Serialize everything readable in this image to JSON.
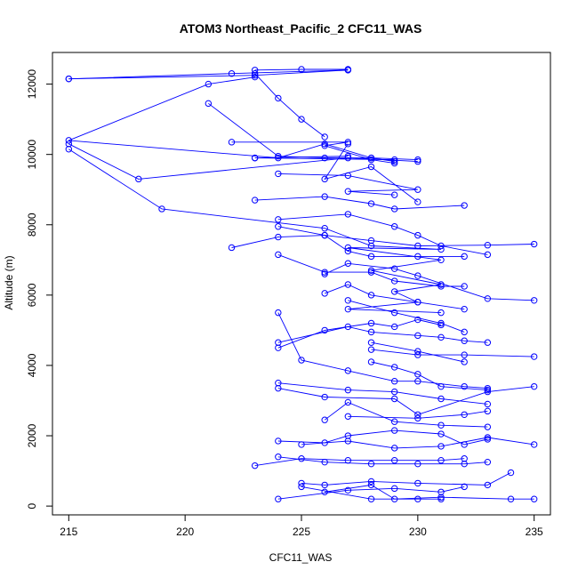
{
  "chart_data": {
    "type": "line",
    "title": "ATOM3 Northeast_Pacific_2 CFC11_WAS",
    "xlabel": "CFC11_WAS",
    "ylabel": "Altitude (m)",
    "xlim": [
      214.3,
      235.7
    ],
    "ylim": [
      -250,
      12900
    ],
    "x_ticks": [
      215,
      220,
      225,
      230,
      235
    ],
    "y_ticks": [
      0,
      2000,
      4000,
      6000,
      8000,
      10000,
      12000
    ],
    "grid": false,
    "legend": "none",
    "marker": "open-circle",
    "series_color": "#0000ff",
    "series": [
      {
        "x": [
          215,
          223,
          227
        ],
        "y": [
          12150,
          12250,
          12400
        ]
      },
      {
        "x": [
          223,
          225,
          227
        ],
        "y": [
          12400,
          12420,
          12420
        ]
      },
      {
        "x": [
          227,
          222,
          215
        ],
        "y": [
          12400,
          12300,
          12150
        ]
      },
      {
        "x": [
          223,
          221,
          215,
          224,
          226,
          228,
          229
        ],
        "y": [
          12200,
          12000,
          10400,
          9900,
          10300,
          9900,
          9800
        ]
      },
      {
        "x": [
          223,
          224,
          225,
          226
        ],
        "y": [
          12300,
          11600,
          11000,
          10500
        ]
      },
      {
        "x": [
          215,
          218,
          227,
          230
        ],
        "y": [
          10300,
          9300,
          9900,
          9800
        ]
      },
      {
        "x": [
          215,
          219,
          226,
          228,
          231,
          227,
          231,
          228,
          231,
          229,
          230,
          227,
          231
        ],
        "y": [
          10150,
          8450,
          7900,
          7400,
          7300,
          7350,
          7000,
          6700,
          6300,
          6100,
          5800,
          5600,
          5500
        ]
      },
      {
        "x": [
          221,
          224,
          226,
          228,
          230
        ],
        "y": [
          11450,
          9950,
          9900,
          9900,
          9850
        ]
      },
      {
        "x": [
          222,
          227,
          226,
          228,
          229
        ],
        "y": [
          10350,
          10350,
          10250,
          9850,
          9750
        ]
      },
      {
        "x": [
          223,
          229,
          223,
          227
        ],
        "y": [
          9900,
          9850,
          9900,
          9950
        ]
      },
      {
        "x": [
          224,
          227,
          230,
          227,
          229
        ],
        "y": [
          9450,
          9400,
          9000,
          8950,
          8850
        ]
      },
      {
        "x": [
          227,
          226,
          228,
          230
        ],
        "y": [
          10300,
          9300,
          9650,
          8650
        ]
      },
      {
        "x": [
          223,
          226,
          228,
          229,
          232
        ],
        "y": [
          8700,
          8800,
          8600,
          8450,
          8550
        ]
      },
      {
        "x": [
          224,
          227,
          229,
          230,
          231,
          233
        ],
        "y": [
          8150,
          8300,
          7950,
          7700,
          7400,
          7150
        ]
      },
      {
        "x": [
          224,
          226,
          228,
          230,
          233,
          235
        ],
        "y": [
          7950,
          7700,
          7550,
          7400,
          7420,
          7450
        ]
      },
      {
        "x": [
          222,
          224,
          226,
          227,
          228,
          230,
          232
        ],
        "y": [
          7350,
          7650,
          7700,
          7250,
          7100,
          7100,
          7100
        ]
      },
      {
        "x": [
          224,
          226,
          228,
          229,
          231,
          232
        ],
        "y": [
          7150,
          6650,
          6650,
          6400,
          6250,
          6250
        ]
      },
      {
        "x": [
          226,
          227,
          229,
          230,
          233,
          235
        ],
        "y": [
          6600,
          6900,
          6750,
          6550,
          5900,
          5850
        ]
      },
      {
        "x": [
          226,
          227,
          228,
          230,
          232
        ],
        "y": [
          6050,
          6300,
          6000,
          5800,
          5600
        ]
      },
      {
        "x": [
          224,
          225,
          227,
          229,
          230,
          232,
          233
        ],
        "y": [
          5500,
          4150,
          3850,
          3550,
          3550,
          3400,
          3350
        ]
      },
      {
        "x": [
          224,
          226,
          228,
          229,
          230,
          231
        ],
        "y": [
          4500,
          5000,
          5200,
          5100,
          5300,
          5150
        ]
      },
      {
        "x": [
          224,
          227,
          228,
          230,
          231,
          232,
          233
        ],
        "y": [
          4650,
          5100,
          4950,
          4850,
          4800,
          4700,
          4650
        ]
      },
      {
        "x": [
          228,
          230,
          232,
          235
        ],
        "y": [
          4450,
          4300,
          4300,
          4250
        ]
      },
      {
        "x": [
          224,
          227,
          229,
          231,
          233
        ],
        "y": [
          3500,
          3300,
          3250,
          3050,
          2900
        ]
      },
      {
        "x": [
          224,
          226,
          229,
          230,
          233,
          235
        ],
        "y": [
          3350,
          3100,
          3050,
          2600,
          3250,
          3400
        ]
      },
      {
        "x": [
          226,
          227,
          229,
          231,
          233
        ],
        "y": [
          2450,
          2950,
          2400,
          2300,
          2250
        ]
      },
      {
        "x": [
          224,
          226,
          227,
          229,
          231,
          232,
          233
        ],
        "y": [
          1850,
          1800,
          2000,
          2150,
          2050,
          1750,
          1900
        ]
      },
      {
        "x": [
          225,
          227,
          229,
          231,
          233,
          235
        ],
        "y": [
          1750,
          1850,
          1650,
          1700,
          1950,
          1750
        ]
      },
      {
        "x": [
          223,
          225,
          227,
          229,
          231,
          232
        ],
        "y": [
          1150,
          1350,
          1300,
          1300,
          1300,
          1350
        ]
      },
      {
        "x": [
          224,
          226,
          228,
          230,
          232,
          233
        ],
        "y": [
          1400,
          1250,
          1200,
          1200,
          1200,
          1250
        ]
      },
      {
        "x": [
          225,
          226,
          228,
          230,
          233,
          234
        ],
        "y": [
          650,
          600,
          700,
          650,
          600,
          950
        ]
      },
      {
        "x": [
          224,
          227,
          229,
          231,
          232
        ],
        "y": [
          200,
          450,
          500,
          400,
          550
        ]
      },
      {
        "x": [
          226,
          228,
          229,
          231,
          234,
          235
        ],
        "y": [
          400,
          600,
          200,
          250,
          200,
          200
        ]
      },
      {
        "x": [
          225,
          228,
          230,
          231
        ],
        "y": [
          550,
          200,
          200,
          200
        ]
      },
      {
        "x": [
          228,
          229,
          230,
          231,
          233
        ],
        "y": [
          4100,
          3950,
          3750,
          3400,
          3300
        ]
      },
      {
        "x": [
          227,
          229,
          231,
          232
        ],
        "y": [
          5850,
          5500,
          5200,
          4950
        ]
      },
      {
        "x": [
          228,
          230,
          232
        ],
        "y": [
          4650,
          4400,
          4100
        ]
      },
      {
        "x": [
          227,
          230,
          232,
          233
        ],
        "y": [
          2550,
          2500,
          2600,
          2700
        ]
      }
    ]
  }
}
